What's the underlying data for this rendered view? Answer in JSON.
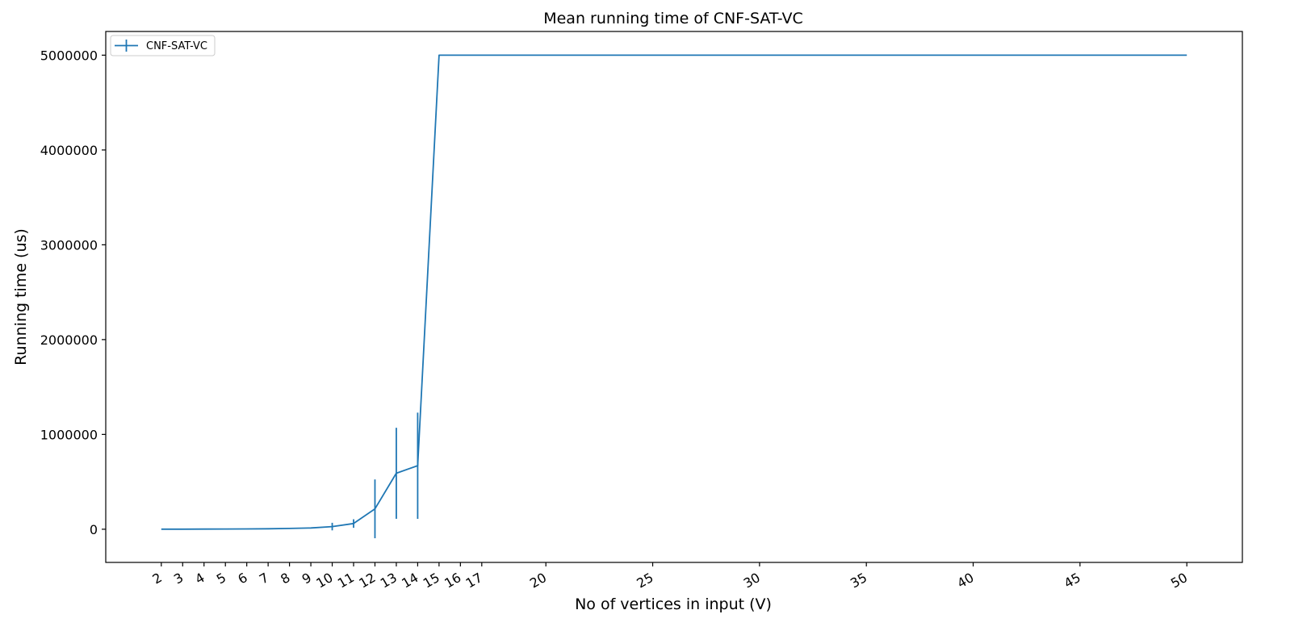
{
  "chart_data": {
    "type": "line",
    "title": "Mean running time of CNF-SAT-VC",
    "xlabel": "No of vertices in input (V)",
    "ylabel": "Running time (us)",
    "x_ticks": [
      2,
      3,
      4,
      5,
      6,
      7,
      8,
      9,
      10,
      11,
      12,
      13,
      14,
      15,
      16,
      17,
      20,
      25,
      30,
      35,
      40,
      45,
      50
    ],
    "y_ticks": [
      0,
      1000000,
      2000000,
      3000000,
      4000000,
      5000000
    ],
    "xlim": [
      -0.6,
      52.6
    ],
    "ylim": [
      -350000,
      5250000
    ],
    "grid": false,
    "legend_position": "top-left",
    "series": [
      {
        "name": "CNF-SAT-VC",
        "color": "#1f77b4",
        "x": [
          2,
          3,
          4,
          5,
          6,
          7,
          8,
          9,
          10,
          11,
          12,
          13,
          14,
          15,
          16,
          17,
          20,
          25,
          30,
          35,
          40,
          45,
          50
        ],
        "y": [
          500,
          800,
          1500,
          2500,
          3500,
          5000,
          8000,
          13000,
          28000,
          60000,
          215000,
          590000,
          670000,
          5000000,
          5000000,
          5000000,
          5000000,
          5000000,
          5000000,
          5000000,
          5000000,
          5000000,
          5000000
        ],
        "yerr": [
          0,
          0,
          0,
          0,
          0,
          0,
          0,
          0,
          40000,
          45000,
          310000,
          480000,
          560000,
          0,
          0,
          0,
          0,
          0,
          0,
          0,
          0,
          0,
          0
        ]
      }
    ]
  }
}
